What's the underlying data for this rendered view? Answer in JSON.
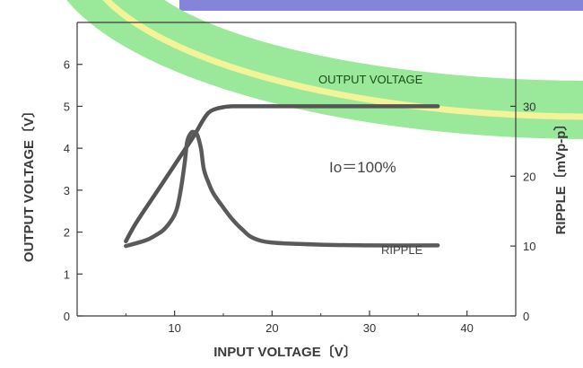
{
  "chart_data": {
    "type": "line",
    "title": "",
    "xlabel": "INPUT VOLTAGE〔V〕",
    "ylabel": "OUTPUT VOLTAGE〔V〕",
    "y2label": "RIPPLE〔mVp-p〕",
    "xlim": [
      0,
      45
    ],
    "ylim": [
      0,
      7
    ],
    "y2lim": [
      0,
      42
    ],
    "x_ticks": [
      10,
      20,
      30,
      40
    ],
    "y_ticks": [
      0,
      1,
      2,
      3,
      4,
      5,
      6
    ],
    "y2_ticks": [
      0,
      10,
      20,
      30
    ],
    "grid": false,
    "legend": "none",
    "annotation": "Io＝100%",
    "series": [
      {
        "name": "OUTPUT VOLTAGE",
        "axis": "left",
        "color": "#555555",
        "x": [
          5,
          6,
          8,
          10,
          11,
          12,
          13,
          13.5,
          14,
          15,
          16,
          18,
          20,
          25,
          30,
          37
        ],
        "y": [
          1.78,
          2.2,
          2.9,
          3.6,
          3.95,
          4.3,
          4.7,
          4.85,
          4.92,
          4.98,
          5.0,
          5.0,
          5.0,
          5.0,
          5.0,
          5.0
        ]
      },
      {
        "name": "RIPPLE",
        "axis": "right",
        "color": "#5a5a5a",
        "x": [
          5,
          7,
          8,
          9,
          10,
          10.5,
          11,
          11.3,
          11.7,
          12,
          12.3,
          12.7,
          13,
          13.5,
          14,
          15,
          16,
          17,
          18,
          20,
          25,
          30,
          37
        ],
        "y": [
          10,
          10.8,
          11.5,
          12.5,
          14.5,
          17,
          21.5,
          25,
          26.2,
          26.3,
          26,
          24,
          21,
          19,
          17.5,
          15.5,
          13.7,
          12.3,
          11.2,
          10.5,
          10.2,
          10.1,
          10.1
        ]
      }
    ]
  },
  "colors": {
    "axis": "#3a3a3a",
    "curve": "#5a5a5a",
    "output_label": "#1a4a1a",
    "green_band": "#9ae89a",
    "yellow_band": "#f3f39a",
    "blue_band": "#7777d6"
  }
}
